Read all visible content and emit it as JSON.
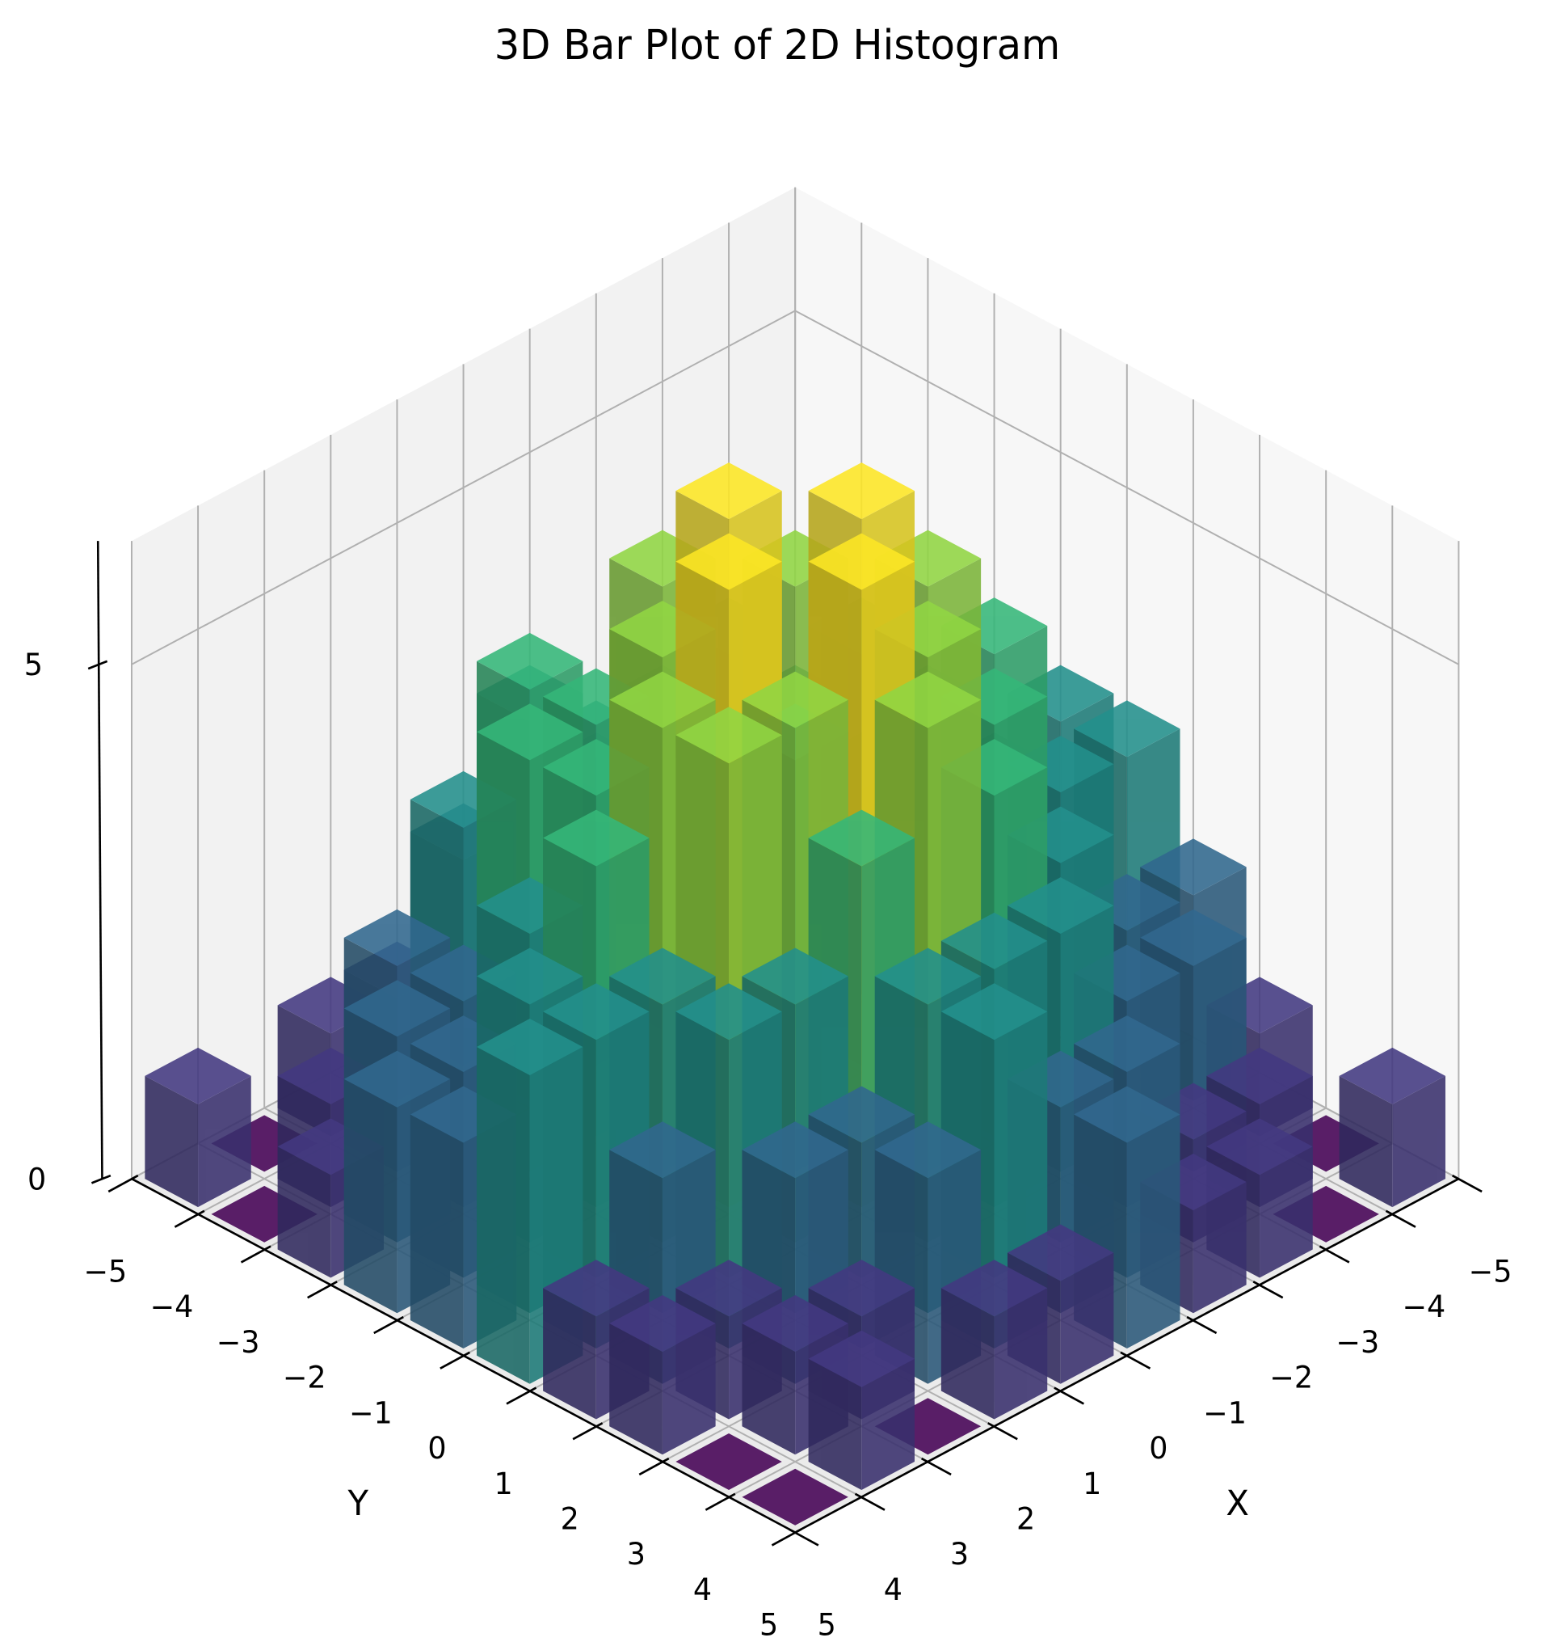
{
  "chart_data": {
    "type": "bar3d",
    "title": "3D Bar Plot of 2D Histogram",
    "x_label": "X",
    "y_label": "Y",
    "colormap": "viridis",
    "xbins": [
      -5,
      -4,
      -3,
      -2,
      -1,
      0,
      1,
      2,
      3,
      4,
      5
    ],
    "ybins": [
      -5,
      -4,
      -3,
      -2,
      -1,
      0,
      1,
      2,
      3,
      4,
      5
    ],
    "counts": [
      [
        0,
        1,
        1,
        2,
        3,
        3,
        2,
        1,
        0,
        1
      ],
      [
        1,
        1,
        2,
        3,
        4,
        3,
        2,
        2,
        1,
        0
      ],
      [
        1,
        2,
        3,
        4,
        5,
        4,
        3,
        2,
        1,
        1
      ],
      [
        2,
        3,
        4,
        5,
        6,
        5,
        4,
        3,
        2,
        1
      ],
      [
        3,
        3,
        5,
        6,
        4,
        6,
        5,
        3,
        2,
        2
      ],
      [
        2,
        4,
        4,
        5,
        6,
        5,
        4,
        3,
        3,
        1
      ],
      [
        1,
        3,
        4,
        4,
        5,
        5,
        3,
        2,
        2,
        1
      ],
      [
        1,
        2,
        2,
        3,
        4,
        3,
        3,
        2,
        1,
        0
      ],
      [
        0,
        1,
        2,
        2,
        3,
        3,
        2,
        1,
        1,
        1
      ],
      [
        1,
        0,
        1,
        2,
        2,
        3,
        1,
        1,
        0,
        0
      ]
    ],
    "xlim": [
      -5,
      5
    ],
    "ylim": [
      -5,
      5
    ],
    "zlim": [
      0,
      6.2
    ],
    "xticks": [
      {
        "value": -5,
        "label": "−5"
      },
      {
        "value": -4,
        "label": "−4"
      },
      {
        "value": -3,
        "label": "−3"
      },
      {
        "value": -2,
        "label": "−2"
      },
      {
        "value": -1,
        "label": "−1"
      },
      0,
      1,
      2,
      3,
      4,
      5
    ],
    "yticks": [
      {
        "value": -5,
        "label": "−5"
      },
      {
        "value": -4,
        "label": "−4"
      },
      {
        "value": -3,
        "label": "−3"
      },
      {
        "value": -2,
        "label": "−2"
      },
      {
        "value": -1,
        "label": "−1"
      },
      0,
      1,
      2,
      3,
      4,
      5
    ],
    "zticks": [
      0,
      5
    ],
    "grid": true
  }
}
